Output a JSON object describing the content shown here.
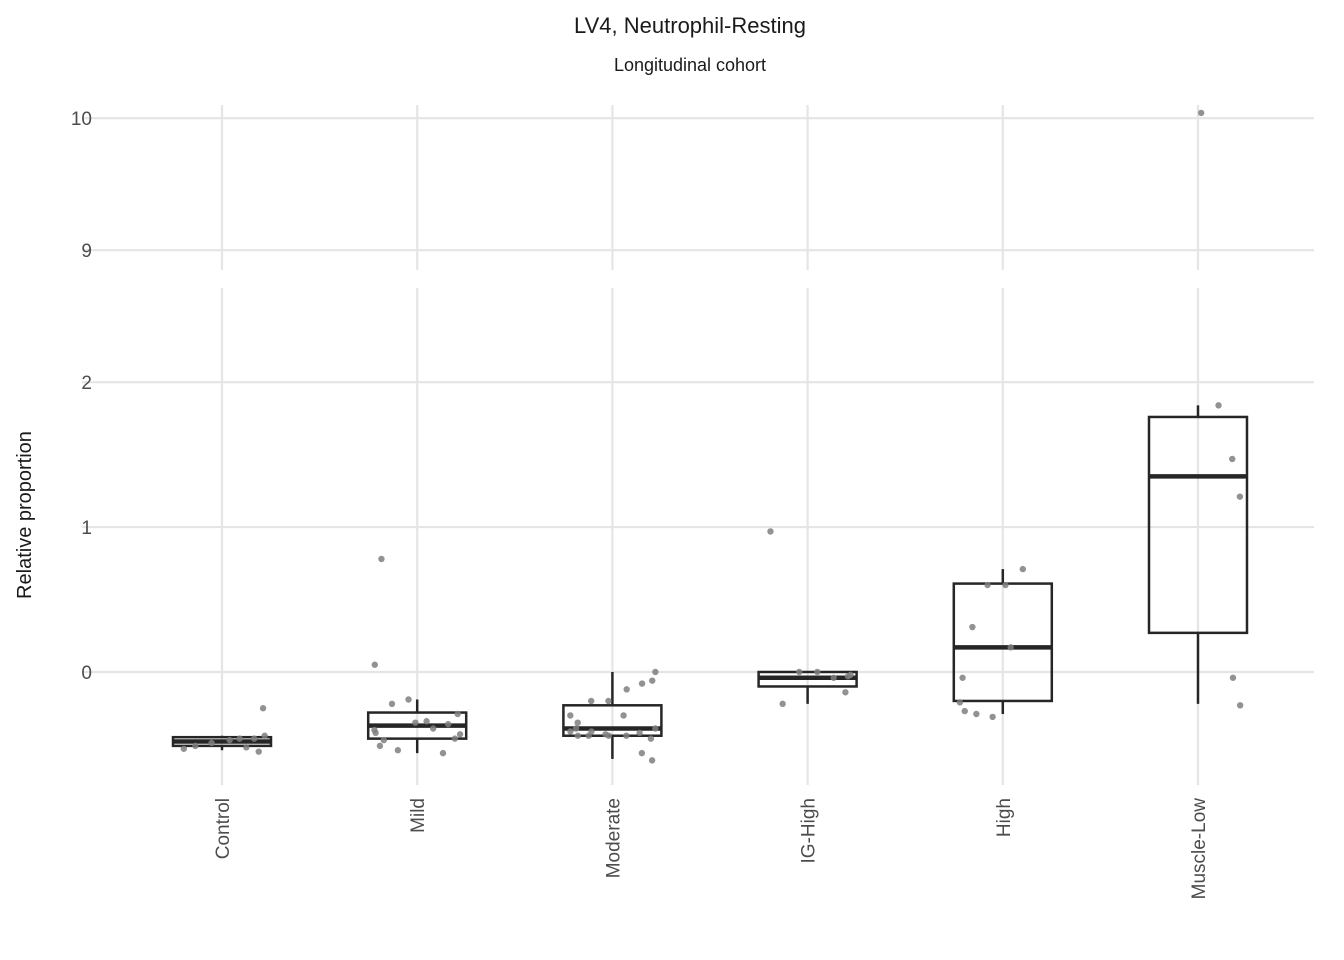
{
  "chart_data": {
    "type": "box",
    "title": "LV4, Neutrophil-Resting",
    "subtitle": "Longitudinal cohort",
    "ylabel": "Relative proportion",
    "xlabel": "",
    "y_axis_break": {
      "lower_range": [
        -0.78,
        2.65
      ],
      "upper_range": [
        8.85,
        10.1
      ],
      "lower_ticks": [
        "0",
        "1",
        "2"
      ],
      "upper_ticks": [
        "9",
        "10"
      ]
    },
    "grid": true,
    "legend": "none",
    "colors": {
      "box_line": "#262626",
      "point": "#7f7f7f",
      "grid": "#e5e5e5"
    },
    "categories": [
      "Control",
      "Mild",
      "Moderate",
      "IG-High",
      "High",
      "Muscle-Low"
    ],
    "boxes": [
      {
        "group": "Control",
        "whisker_low": -0.54,
        "q1": -0.51,
        "median": -0.48,
        "q3": -0.45,
        "whisker_high": -0.44
      },
      {
        "group": "Mild",
        "whisker_low": -0.56,
        "q1": -0.46,
        "median": -0.37,
        "q3": -0.28,
        "whisker_high": -0.19
      },
      {
        "group": "Moderate",
        "whisker_low": -0.6,
        "q1": -0.44,
        "median": -0.39,
        "q3": -0.23,
        "whisker_high": 0.0
      },
      {
        "group": "IG-High",
        "whisker_low": -0.22,
        "q1": -0.1,
        "median": -0.04,
        "q3": 0.0,
        "whisker_high": 0.0
      },
      {
        "group": "High",
        "whisker_low": -0.29,
        "q1": -0.2,
        "median": 0.17,
        "q3": 0.61,
        "whisker_high": 0.71
      },
      {
        "group": "Muscle-Low",
        "whisker_low": -0.22,
        "q1": 0.27,
        "median": 1.35,
        "q3": 1.76,
        "whisker_high": 1.84
      }
    ],
    "points": [
      {
        "group": "Control",
        "values": [
          -0.46,
          -0.46,
          -0.25,
          -0.44,
          -0.55,
          -0.52,
          -0.47,
          -0.49,
          -0.51,
          -0.53
        ]
      },
      {
        "group": "Mild",
        "values": [
          0.78,
          0.05,
          -0.42,
          -0.47,
          -0.54,
          -0.35,
          -0.39,
          -0.36,
          -0.29,
          -0.43,
          -0.46,
          -0.56,
          -0.34,
          -0.19,
          -0.22,
          -0.51,
          -0.4
        ]
      },
      {
        "group": "Moderate",
        "values": [
          0.0,
          -0.61,
          -0.56,
          -0.44,
          -0.2,
          -0.2,
          -0.35,
          -0.3,
          -0.41,
          -0.44,
          -0.41,
          -0.44,
          -0.12,
          -0.08,
          -0.06,
          -0.39,
          -0.46,
          -0.42,
          -0.3,
          -0.43,
          -0.44,
          -0.39
        ]
      },
      {
        "group": "IG-High",
        "values": [
          0.97,
          -0.22,
          -0.0,
          0.0,
          -0.04,
          -0.14,
          -0.02,
          -0.03
        ]
      },
      {
        "group": "High",
        "values": [
          0.71,
          0.6,
          0.6,
          0.31,
          -0.04,
          -0.21,
          -0.27,
          -0.29,
          -0.31,
          0.17
        ]
      },
      {
        "group": "Muscle-Low",
        "values": [
          10.04,
          1.84,
          1.47,
          1.21,
          -0.23,
          -0.04
        ]
      }
    ]
  }
}
